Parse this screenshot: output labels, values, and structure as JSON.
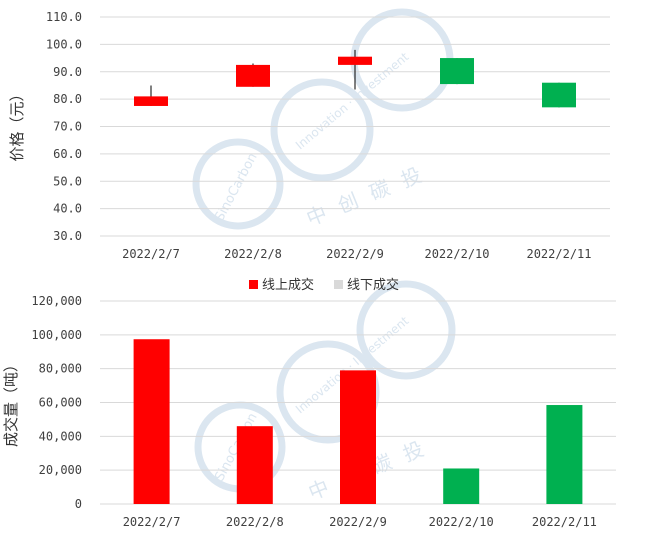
{
  "colors": {
    "up": "#ff0000",
    "down": "#00b050",
    "grid": "#d9d9d9",
    "legend_offline": "#d9d9d9",
    "watermark": "#dbe6f0"
  },
  "watermark": {
    "brand": "SinoCarbon",
    "tagline": "Innovation · Investment",
    "chinese": "中创碳投"
  },
  "chart_data": [
    {
      "type": "candlestick",
      "ylabel": "价格（元）",
      "ylim": [
        30,
        110
      ],
      "yticks": [
        "30.0",
        "40.0",
        "50.0",
        "60.0",
        "70.0",
        "80.0",
        "90.0",
        "100.0",
        "110.0"
      ],
      "grid": true,
      "categories": [
        "2022/2/7",
        "2022/2/8",
        "2022/2/9",
        "2022/2/10",
        "2022/2/11"
      ],
      "ohlc": [
        {
          "open": 77.5,
          "high": 85.0,
          "low": 77.5,
          "close": 81.0,
          "dir": "up"
        },
        {
          "open": 84.5,
          "high": 93.0,
          "low": 84.5,
          "close": 92.5,
          "dir": "up"
        },
        {
          "open": 92.5,
          "high": 98.0,
          "low": 83.5,
          "close": 95.5,
          "dir": "up"
        },
        {
          "open": 95.0,
          "high": 95.0,
          "low": 85.5,
          "close": 85.5,
          "dir": "down"
        },
        {
          "open": 86.0,
          "high": 86.0,
          "low": 77.0,
          "close": 77.0,
          "dir": "down"
        }
      ]
    },
    {
      "type": "bar",
      "ylabel": "成交量（吨）",
      "ylim": [
        0,
        120000
      ],
      "yticks": [
        "0",
        "20,000",
        "40,000",
        "60,000",
        "80,000",
        "100,000",
        "120,000"
      ],
      "grid": true,
      "legend_position": "top",
      "categories": [
        "2022/2/7",
        "2022/2/8",
        "2022/2/9",
        "2022/2/10",
        "2022/2/11"
      ],
      "series": [
        {
          "name": "线上成交",
          "color": "#ff0000",
          "values": [
            97400,
            46000,
            79000,
            21000,
            58500
          ]
        },
        {
          "name": "线下成交",
          "color": "#d9d9d9",
          "values": [
            0,
            0,
            0,
            0,
            0
          ]
        }
      ],
      "bar_colors": [
        "#ff0000",
        "#ff0000",
        "#ff0000",
        "#00b050",
        "#00b050"
      ]
    }
  ]
}
